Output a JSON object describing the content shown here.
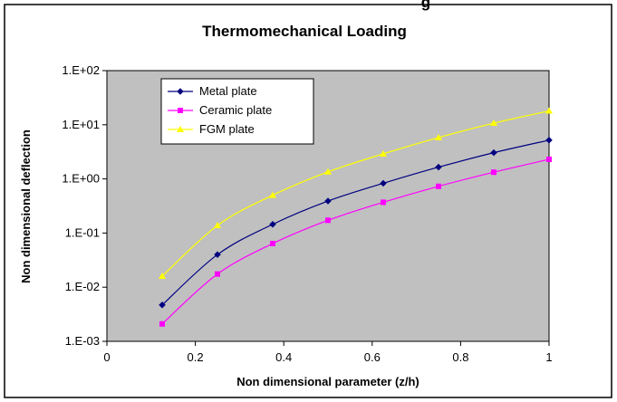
{
  "top_fragment": "g",
  "chart_data": {
    "type": "line",
    "title": "Thermomechanical Loading",
    "xlabel": "Non dimensional parameter (z/h)",
    "ylabel": "Non dimensional deflection",
    "xlim": [
      0,
      1
    ],
    "ylim": [
      0.001,
      100
    ],
    "yscale": "log",
    "grid": false,
    "legend_position": "top-left",
    "x_tick_labels": [
      "0",
      "0.2",
      "0.4",
      "0.6",
      "0.8",
      "1"
    ],
    "y_tick_labels": [
      "1.E-03",
      "1.E-02",
      "1.E-01",
      "1.E+00",
      "1.E+01",
      "1.E+02"
    ],
    "x": [
      0.125,
      0.25,
      0.375,
      0.5,
      0.625,
      0.75,
      0.875,
      1.0
    ],
    "series": [
      {
        "name": "Metal plate",
        "color": "#000080",
        "marker": "diamond",
        "values": [
          0.0047,
          0.04,
          0.145,
          0.39,
          0.83,
          1.65,
          3.05,
          5.2
        ]
      },
      {
        "name": "Ceramic plate",
        "color": "#ff00ff",
        "marker": "square",
        "values": [
          0.0021,
          0.0175,
          0.064,
          0.172,
          0.37,
          0.73,
          1.33,
          2.3
        ]
      },
      {
        "name": "FGM plate",
        "color": "#ffff00",
        "marker": "triangle",
        "values": [
          0.016,
          0.138,
          0.5,
          1.35,
          2.9,
          5.8,
          10.7,
          18.0
        ]
      }
    ],
    "colors": {
      "plot_background": "#c0c0c0",
      "frame": "#000000"
    }
  }
}
